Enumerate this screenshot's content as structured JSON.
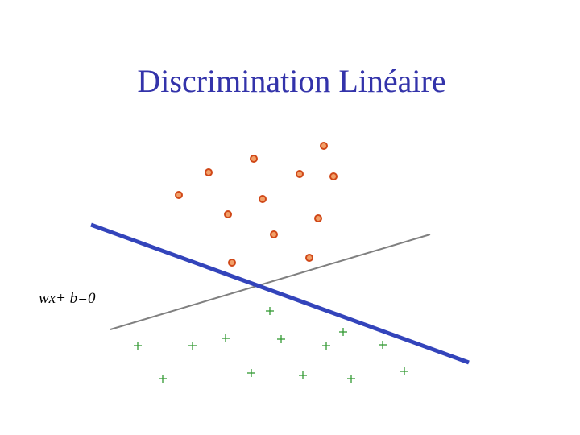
{
  "header": {
    "title": "Discrimination Linéaire"
  },
  "diagram": {
    "line_label": "wx+ b=0"
  }
}
